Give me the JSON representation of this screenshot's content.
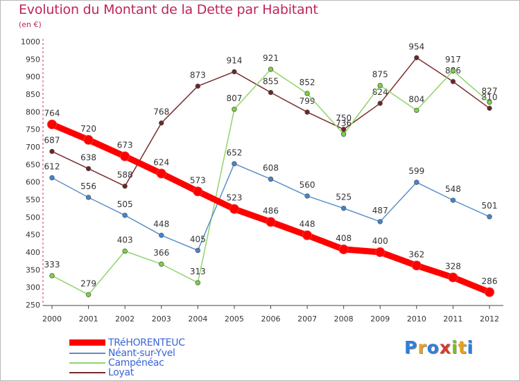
{
  "title": "Evolution du Montant de la Dette par Habitant",
  "subtitle": "(en €)",
  "logo_text": "Proxiti",
  "chart_data": {
    "type": "line",
    "title": "Evolution du Montant de la Dette par Habitant",
    "subtitle": "(en €)",
    "xlabel": "",
    "ylabel": "",
    "x": [
      "2000",
      "2001",
      "2002",
      "2003",
      "2004",
      "2005",
      "2006",
      "2007",
      "2008",
      "2009",
      "2010",
      "2011",
      "2012"
    ],
    "ylim": [
      250,
      1000
    ],
    "yticks": [
      "250",
      "300",
      "350",
      "400",
      "450",
      "500",
      "550",
      "600",
      "650",
      "700",
      "750",
      "800",
      "850",
      "900",
      "950",
      "1000"
    ],
    "grid": false,
    "legend_position": "bottom-left",
    "series": [
      {
        "name": "TRéHORENTEUC",
        "color": "#ff0000",
        "values": [
          764,
          720,
          673,
          624,
          573,
          523,
          486,
          448,
          408,
          400,
          362,
          328,
          286
        ],
        "labels": [
          "764",
          "720",
          "673",
          "624",
          "573",
          "523",
          "486",
          "448",
          "408",
          "400",
          "362",
          "328",
          "286"
        ]
      },
      {
        "name": "Néant-sur-Yvel",
        "color": "#5b8fc8",
        "marker": "#3f86d6",
        "values": [
          612,
          556,
          505,
          448,
          405,
          652,
          608,
          560,
          525,
          487,
          599,
          548,
          501
        ],
        "labels": [
          "612",
          "556",
          "505",
          "448",
          "405",
          "652",
          "608",
          "560",
          "525",
          "487",
          "599",
          "548",
          "501"
        ]
      },
      {
        "name": "Campénéac",
        "color": "#90d46a",
        "marker": "#7bd43c",
        "values": [
          333,
          279,
          403,
          366,
          313,
          807,
          921,
          852,
          736,
          875,
          804,
          917,
          827
        ],
        "labels": [
          "333",
          "279",
          "403",
          "366",
          "313",
          "807",
          "921",
          "852",
          "736",
          "875",
          "804",
          "917",
          "827"
        ]
      },
      {
        "name": "Loyat",
        "color": "#7a2a2a",
        "marker": "#6e2424",
        "values": [
          687,
          638,
          588,
          768,
          873,
          914,
          855,
          799,
          750,
          824,
          954,
          886,
          810
        ],
        "labels": [
          "687",
          "638",
          "588",
          "768",
          "873",
          "914",
          "855",
          "799",
          "750",
          "824",
          "954",
          "886",
          "810"
        ]
      }
    ]
  }
}
